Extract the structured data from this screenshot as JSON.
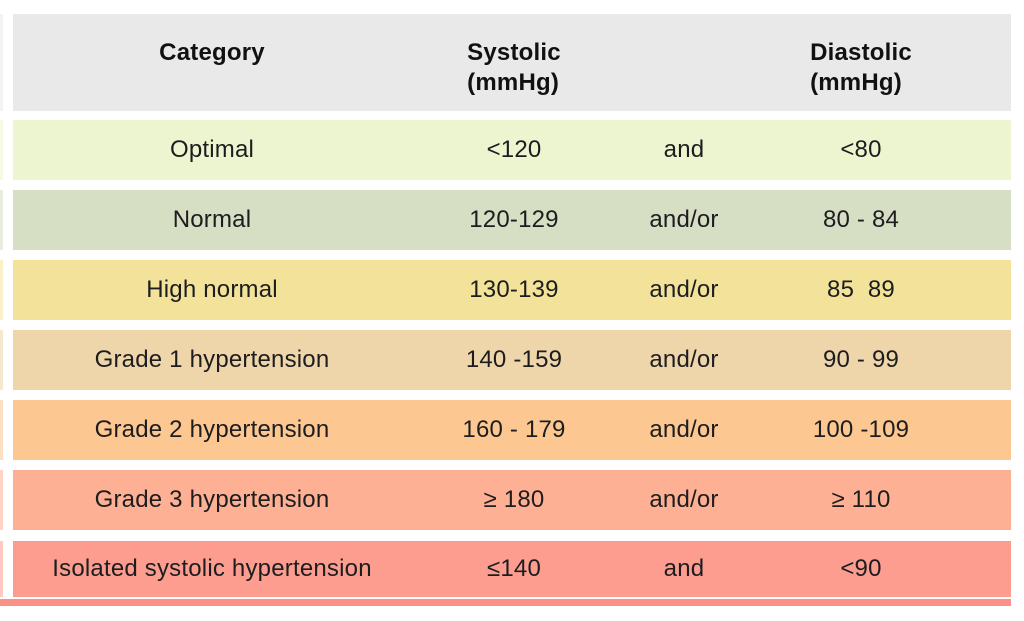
{
  "table": {
    "header": {
      "bg": "#e9e9e9",
      "category": "Category",
      "systolic_line1": "Systolic",
      "systolic_line2": "(mmHg)",
      "diastolic_line1": "Diastolic",
      "diastolic_line2": "(mmHg)"
    },
    "rows": [
      {
        "category": "Optimal",
        "systolic": "<120",
        "connector": "and",
        "diastolic": "<80",
        "bg": "#ecf5cf"
      },
      {
        "category": "Normal",
        "systolic": "120-129",
        "connector": "and/or",
        "diastolic": "80 - 84",
        "bg": "#d6dec3"
      },
      {
        "category": "High normal",
        "systolic": "130-139",
        "connector": "and/or",
        "diastolic": "85  89",
        "bg": "#f3e39a"
      },
      {
        "category": "Grade 1 hypertension",
        "systolic": "140 -159",
        "connector": "and/or",
        "diastolic": "90 - 99",
        "bg": "#eed5aa"
      },
      {
        "category": "Grade 2 hypertension",
        "systolic": "160 - 179",
        "connector": "and/or",
        "diastolic": "100 -109",
        "bg": "#fcc791"
      },
      {
        "category": "Grade 3 hypertension",
        "systolic": "≥ 180",
        "connector": "and/or",
        "diastolic": "≥ 110",
        "bg": "#fdb093"
      },
      {
        "category": "Isolated systolic hypertension",
        "systolic": "≤140",
        "connector": "and",
        "diastolic": "<90",
        "bg": "#fc9d8f"
      }
    ],
    "bottom_strip_color": "#fb9186"
  },
  "chart_data": {
    "type": "table",
    "columns": [
      "Category",
      "Systolic (mmHg)",
      "",
      "Diastolic (mmHg)"
    ],
    "rows": [
      [
        "Optimal",
        "<120",
        "and",
        "<80"
      ],
      [
        "Normal",
        "120-129",
        "and/or",
        "80 - 84"
      ],
      [
        "High normal",
        "130-139",
        "and/or",
        "85  89"
      ],
      [
        "Grade 1 hypertension",
        "140 -159",
        "and/or",
        "90 - 99"
      ],
      [
        "Grade 2 hypertension",
        "160 - 179",
        "and/or",
        "100 -109"
      ],
      [
        "Grade 3 hypertension",
        "≥ 180",
        "and/or",
        "≥ 110"
      ],
      [
        "Isolated systolic hypertension",
        "≤140",
        "and",
        "<90"
      ]
    ],
    "row_colors": [
      "#ecf5cf",
      "#d6dec3",
      "#f3e39a",
      "#eed5aa",
      "#fcc791",
      "#fdb093",
      "#fc9d8f"
    ],
    "header_color": "#e9e9e9"
  }
}
